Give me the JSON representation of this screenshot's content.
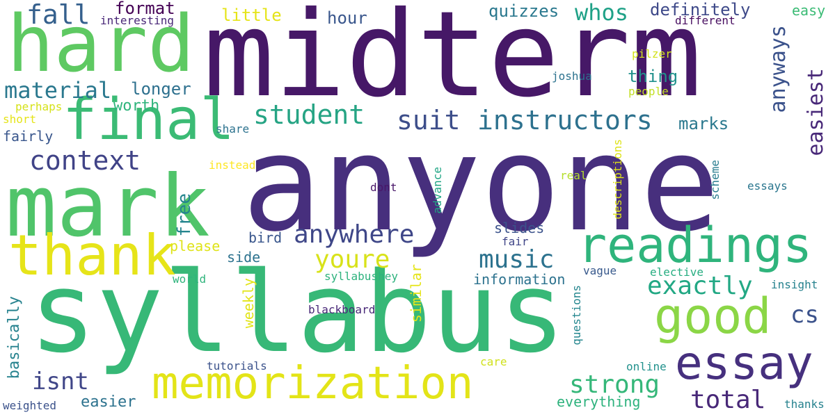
{
  "words": [
    {
      "text": "midterm",
      "color": "#461867"
    },
    {
      "text": "anyone",
      "color": "#472f7d"
    },
    {
      "text": "syllabus",
      "color": "#37b877"
    },
    {
      "text": "hard",
      "color": "#5ec962"
    },
    {
      "text": "mark",
      "color": "#50c46a"
    },
    {
      "text": "final",
      "color": "#3bbb75"
    },
    {
      "text": "thank",
      "color": "#e6e419"
    },
    {
      "text": "memorization",
      "color": "#e3e418"
    },
    {
      "text": "readings",
      "color": "#2fb47c"
    },
    {
      "text": "good",
      "color": "#8bd646"
    },
    {
      "text": "essay",
      "color": "#46307e"
    },
    {
      "text": "anywhere",
      "color": "#3f4788"
    },
    {
      "text": "instructors",
      "color": "#2d718e"
    },
    {
      "text": "student",
      "color": "#26a484"
    },
    {
      "text": "suit",
      "color": "#3d4e8a"
    },
    {
      "text": "context",
      "color": "#404387"
    },
    {
      "text": "material",
      "color": "#2a788e"
    },
    {
      "text": "fall",
      "color": "#35608d"
    },
    {
      "text": "whos",
      "color": "#1fa187"
    },
    {
      "text": "youre",
      "color": "#d8e219"
    },
    {
      "text": "music",
      "color": "#2c728e"
    },
    {
      "text": "exactly",
      "color": "#22a884"
    },
    {
      "text": "strong",
      "color": "#35b779"
    },
    {
      "text": "total",
      "color": "#482878"
    },
    {
      "text": "isnt",
      "color": "#404688"
    },
    {
      "text": "cs",
      "color": "#3b528b"
    },
    {
      "text": "anyways",
      "color": "#3b528b"
    },
    {
      "text": "easiest",
      "color": "#482878"
    },
    {
      "text": "format",
      "color": "#440154"
    },
    {
      "text": "little",
      "color": "#e5e419"
    },
    {
      "text": "hour",
      "color": "#39568c"
    },
    {
      "text": "quizzes",
      "color": "#2a788e"
    },
    {
      "text": "definitely",
      "color": "#3e4989"
    },
    {
      "text": "easy",
      "color": "#3bbb75"
    },
    {
      "text": "longer",
      "color": "#2d708e"
    },
    {
      "text": "worth",
      "color": "#2fb47c"
    },
    {
      "text": "marks",
      "color": "#2a788e"
    },
    {
      "text": "thing",
      "color": "#21918c"
    },
    {
      "text": "people",
      "color": "#c2df23"
    },
    {
      "text": "pilzer",
      "color": "#d2e21b"
    },
    {
      "text": "joshua",
      "color": "#2c728e"
    },
    {
      "text": "interesting",
      "color": "#482677"
    },
    {
      "text": "different",
      "color": "#470d60"
    },
    {
      "text": "perhaps",
      "color": "#d5e21a"
    },
    {
      "text": "short",
      "color": "#e5e419"
    },
    {
      "text": "fairly",
      "color": "#39568c"
    },
    {
      "text": "share",
      "color": "#2c728e"
    },
    {
      "text": "instead",
      "color": "#fde725"
    },
    {
      "text": "free",
      "color": "#25858e"
    },
    {
      "text": "please",
      "color": "#dfe318"
    },
    {
      "text": "bird",
      "color": "#39568c"
    },
    {
      "text": "dont",
      "color": "#481668"
    },
    {
      "text": "advance",
      "color": "#21a685"
    },
    {
      "text": "descriptions",
      "color": "#dde318"
    },
    {
      "text": "real",
      "color": "#b5de2b"
    },
    {
      "text": "scheme",
      "color": "#287c8e"
    },
    {
      "text": "essays",
      "color": "#2a768e"
    },
    {
      "text": "slides",
      "color": "#3b528b"
    },
    {
      "text": "fair",
      "color": "#404688"
    },
    {
      "text": "side",
      "color": "#2c728e"
    },
    {
      "text": "information",
      "color": "#2c728e"
    },
    {
      "text": "vague",
      "color": "#38598c"
    },
    {
      "text": "elective",
      "color": "#27ad81"
    },
    {
      "text": "insight",
      "color": "#26828e"
    },
    {
      "text": "world",
      "color": "#2fb47c"
    },
    {
      "text": "syllabushey",
      "color": "#2db27d"
    },
    {
      "text": "weekly",
      "color": "#e2e418"
    },
    {
      "text": "similar",
      "color": "#e5e419"
    },
    {
      "text": "basically",
      "color": "#26828e"
    },
    {
      "text": "blackboard",
      "color": "#482878"
    },
    {
      "text": "questions",
      "color": "#24868e"
    },
    {
      "text": "thanks",
      "color": "#26828e"
    },
    {
      "text": "tutorials",
      "color": "#3b528b"
    },
    {
      "text": "care",
      "color": "#d0e11c"
    },
    {
      "text": "online",
      "color": "#21918c"
    },
    {
      "text": "easier",
      "color": "#2c728e"
    },
    {
      "text": "everything",
      "color": "#2db27d"
    },
    {
      "text": "weighted",
      "color": "#3b528b"
    }
  ]
}
